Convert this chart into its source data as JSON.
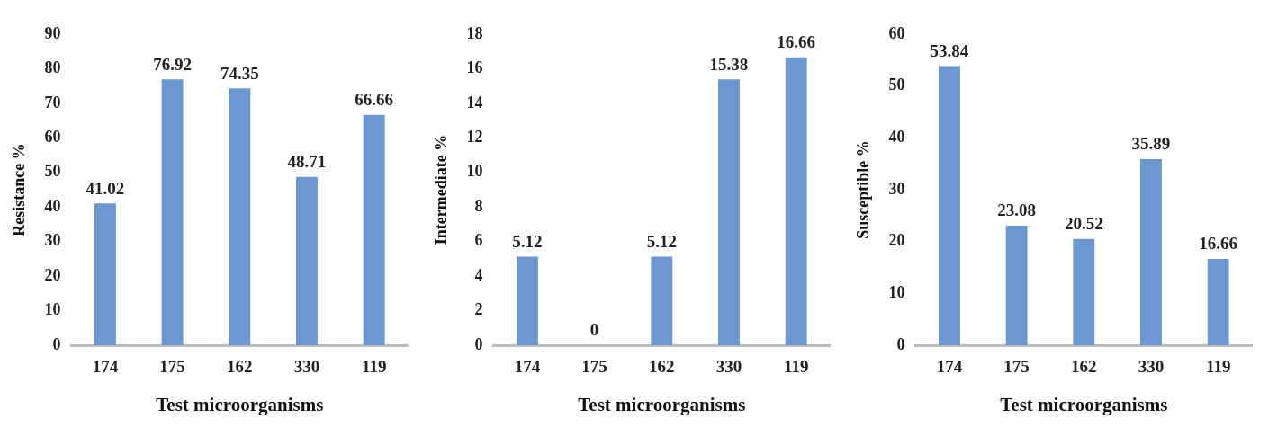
{
  "chart_data": [
    {
      "type": "bar",
      "xlabel": "Test microorganisms",
      "ylabel": "Resistance %",
      "categories": [
        "174",
        "175",
        "162",
        "330",
        "119"
      ],
      "values": [
        41.02,
        76.92,
        74.35,
        48.71,
        66.66
      ],
      "color": "#6b98d0",
      "ylim": [
        0,
        90
      ],
      "yticks": [
        0,
        10,
        20,
        30,
        40,
        50,
        60,
        70,
        80,
        90
      ],
      "grid": false,
      "data_labels": true
    },
    {
      "type": "bar",
      "xlabel": "Test microorganisms",
      "ylabel": "Intermediate %",
      "categories": [
        "174",
        "175",
        "162",
        "330",
        "119"
      ],
      "values": [
        5.12,
        0,
        5.12,
        15.38,
        16.66
      ],
      "color": "#6b98d0",
      "ylim": [
        0,
        18
      ],
      "yticks": [
        0,
        2,
        4,
        6,
        8,
        10,
        12,
        14,
        16,
        18
      ],
      "grid": false,
      "data_labels": true
    },
    {
      "type": "bar",
      "xlabel": "Test microorganisms",
      "ylabel": "Susceptible %",
      "categories": [
        "174",
        "175",
        "162",
        "330",
        "119"
      ],
      "values": [
        53.84,
        23.08,
        20.52,
        35.89,
        16.66
      ],
      "color": "#6b98d0",
      "ylim": [
        0,
        60
      ],
      "yticks": [
        0,
        10,
        20,
        30,
        40,
        50,
        60
      ],
      "grid": false,
      "data_labels": true
    }
  ]
}
